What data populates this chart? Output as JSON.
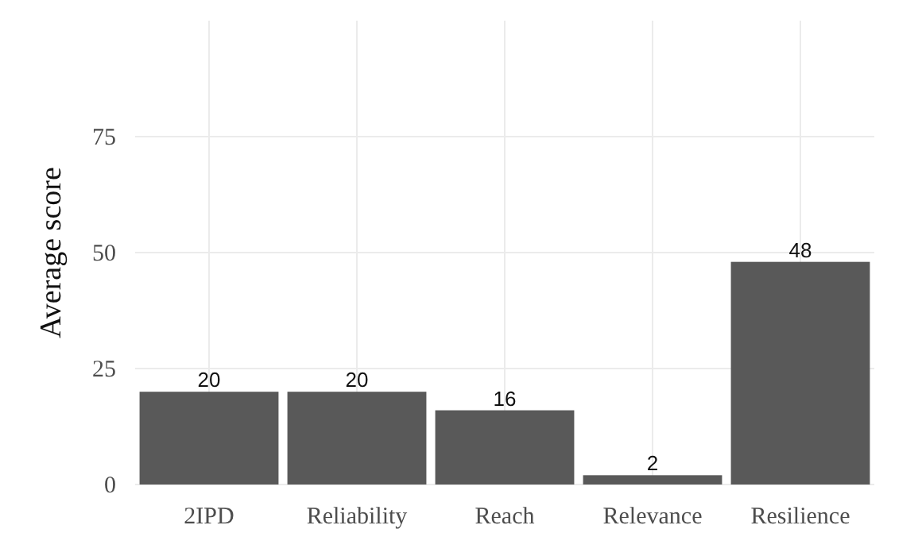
{
  "chart_data": {
    "type": "bar",
    "ylabel": "Average score",
    "categories": [
      "2IPD",
      "Reliability",
      "Reach",
      "Relevance",
      "Resilience"
    ],
    "values": [
      20,
      20,
      16,
      2,
      48
    ],
    "color": "#595959",
    "ylim": [
      0,
      100
    ],
    "yticks": [
      0,
      25,
      50,
      75
    ],
    "grid": true,
    "data_labels": true
  }
}
